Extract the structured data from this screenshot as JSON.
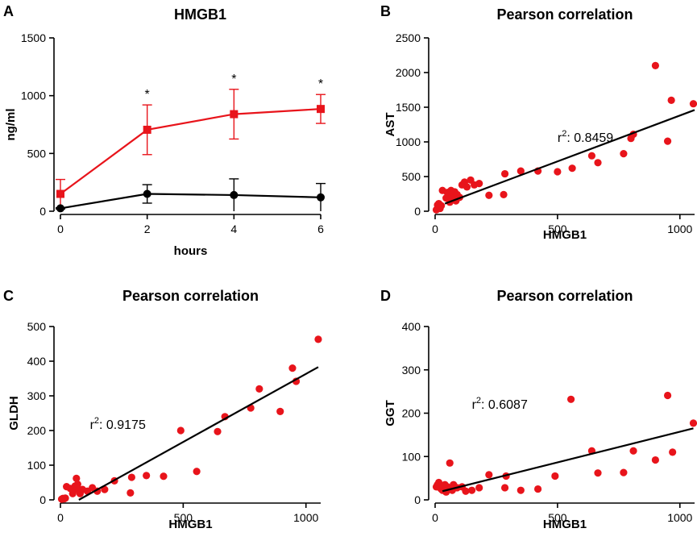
{
  "chart_data": [
    {
      "id": "A",
      "panel_label": "A",
      "type": "line",
      "title": "HMGB1",
      "xlabel": "hours",
      "ylabel": "ng/ml",
      "xlim": [
        0,
        6
      ],
      "ylim": [
        0,
        1500
      ],
      "xticks": [
        0,
        2,
        4,
        6
      ],
      "yticks": [
        0,
        500,
        1000,
        1500
      ],
      "x": [
        0,
        2,
        4,
        6
      ],
      "series": [
        {
          "color": "#e8141b",
          "marker": "square",
          "values": [
            150,
            705,
            840,
            885
          ],
          "error": [
            125,
            215,
            215,
            125
          ]
        },
        {
          "color": "#000000",
          "marker": "circle",
          "values": [
            25,
            150,
            140,
            120
          ],
          "error": [
            5,
            80,
            140,
            120
          ]
        }
      ],
      "significance": [
        {
          "x": 2,
          "label": "*"
        },
        {
          "x": 4,
          "label": "*"
        },
        {
          "x": 6,
          "label": "*"
        }
      ],
      "grid": false
    },
    {
      "id": "B",
      "panel_label": "B",
      "type": "scatter",
      "title": "Pearson correlation",
      "xlabel": "HMGB1",
      "ylabel": "AST",
      "xlim": [
        0,
        1060
      ],
      "ylim": [
        0,
        2500
      ],
      "xticks": [
        0,
        500,
        1000
      ],
      "yticks": [
        0,
        500,
        1000,
        1500,
        2000,
        2500
      ],
      "annotation_base": "r",
      "annotation_sup": "2",
      "annotation_value": ": 0.8459",
      "annotation_anchor": [
        500,
        1000
      ],
      "point_color": "#e8141b",
      "fit_line": {
        "x": [
          40,
          1060
        ],
        "y": [
          110,
          1460
        ]
      },
      "points": [
        [
          5,
          20
        ],
        [
          10,
          90
        ],
        [
          15,
          110
        ],
        [
          20,
          40
        ],
        [
          25,
          80
        ],
        [
          30,
          300
        ],
        [
          45,
          190
        ],
        [
          50,
          270
        ],
        [
          55,
          230
        ],
        [
          58,
          180
        ],
        [
          60,
          130
        ],
        [
          65,
          300
        ],
        [
          70,
          210
        ],
        [
          75,
          260
        ],
        [
          80,
          280
        ],
        [
          85,
          150
        ],
        [
          90,
          240
        ],
        [
          100,
          200
        ],
        [
          110,
          380
        ],
        [
          120,
          420
        ],
        [
          130,
          350
        ],
        [
          145,
          450
        ],
        [
          160,
          380
        ],
        [
          180,
          400
        ],
        [
          220,
          230
        ],
        [
          280,
          240
        ],
        [
          285,
          540
        ],
        [
          350,
          580
        ],
        [
          420,
          580
        ],
        [
          500,
          570
        ],
        [
          560,
          620
        ],
        [
          640,
          800
        ],
        [
          665,
          700
        ],
        [
          770,
          830
        ],
        [
          800,
          1050
        ],
        [
          810,
          1110
        ],
        [
          900,
          2100
        ],
        [
          950,
          1010
        ],
        [
          965,
          1600
        ],
        [
          1055,
          1550
        ]
      ],
      "grid": false
    },
    {
      "id": "C",
      "panel_label": "C",
      "type": "scatter",
      "title": "Pearson correlation",
      "xlabel": "HMGB1",
      "ylabel": "GLDH",
      "xlim": [
        0,
        1060
      ],
      "ylim": [
        0,
        500
      ],
      "xticks": [
        0,
        500,
        1000
      ],
      "yticks": [
        0,
        100,
        200,
        300,
        400,
        500
      ],
      "annotation_base": "r",
      "annotation_sup": "2",
      "annotation_value": ": 0.9175",
      "annotation_anchor": [
        120,
        205
      ],
      "point_color": "#e8141b",
      "fit_line": {
        "x": [
          75,
          1050
        ],
        "y": [
          0,
          383
        ]
      },
      "points": [
        [
          5,
          2
        ],
        [
          10,
          4
        ],
        [
          15,
          3
        ],
        [
          20,
          5
        ],
        [
          25,
          38
        ],
        [
          40,
          33
        ],
        [
          50,
          18
        ],
        [
          55,
          28
        ],
        [
          60,
          40
        ],
        [
          65,
          62
        ],
        [
          70,
          45
        ],
        [
          75,
          28
        ],
        [
          80,
          18
        ],
        [
          90,
          30
        ],
        [
          110,
          25
        ],
        [
          130,
          35
        ],
        [
          150,
          25
        ],
        [
          180,
          30
        ],
        [
          220,
          55
        ],
        [
          285,
          20
        ],
        [
          290,
          65
        ],
        [
          350,
          70
        ],
        [
          420,
          68
        ],
        [
          490,
          200
        ],
        [
          555,
          82
        ],
        [
          640,
          197
        ],
        [
          670,
          240
        ],
        [
          775,
          265
        ],
        [
          810,
          320
        ],
        [
          895,
          255
        ],
        [
          945,
          380
        ],
        [
          960,
          342
        ],
        [
          1050,
          463
        ]
      ],
      "grid": false
    },
    {
      "id": "D",
      "panel_label": "D",
      "type": "scatter",
      "title": "Pearson correlation",
      "xlabel": "HMGB1",
      "ylabel": "GGT",
      "xlim": [
        0,
        1060
      ],
      "ylim": [
        0,
        400
      ],
      "xticks": [
        0,
        500,
        1000
      ],
      "yticks": [
        0,
        100,
        200,
        300,
        400
      ],
      "annotation_base": "r",
      "annotation_sup": "2",
      "annotation_value": ": 0.6087",
      "annotation_anchor": [
        150,
        210
      ],
      "point_color": "#e8141b",
      "fit_line": {
        "x": [
          30,
          1055
        ],
        "y": [
          20,
          165
        ]
      },
      "points": [
        [
          5,
          30
        ],
        [
          10,
          35
        ],
        [
          15,
          40
        ],
        [
          20,
          28
        ],
        [
          25,
          25
        ],
        [
          30,
          22
        ],
        [
          40,
          35
        ],
        [
          45,
          18
        ],
        [
          50,
          30
        ],
        [
          55,
          25
        ],
        [
          60,
          85
        ],
        [
          65,
          28
        ],
        [
          70,
          22
        ],
        [
          75,
          35
        ],
        [
          90,
          28
        ],
        [
          110,
          30
        ],
        [
          125,
          20
        ],
        [
          150,
          22
        ],
        [
          180,
          28
        ],
        [
          220,
          58
        ],
        [
          285,
          28
        ],
        [
          290,
          55
        ],
        [
          350,
          22
        ],
        [
          420,
          25
        ],
        [
          490,
          55
        ],
        [
          555,
          232
        ],
        [
          640,
          113
        ],
        [
          665,
          62
        ],
        [
          770,
          63
        ],
        [
          810,
          113
        ],
        [
          900,
          92
        ],
        [
          950,
          241
        ],
        [
          970,
          110
        ],
        [
          1055,
          177
        ]
      ],
      "grid": false
    }
  ]
}
